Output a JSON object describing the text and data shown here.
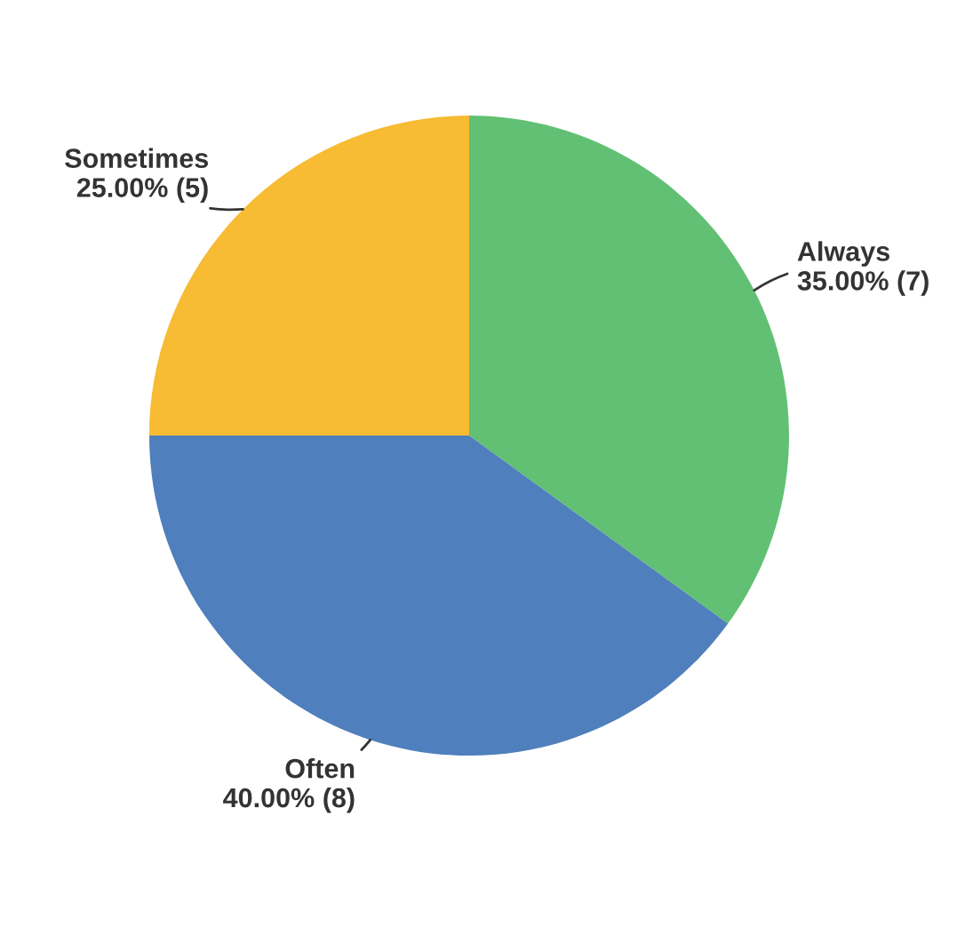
{
  "chart_data": {
    "type": "pie",
    "categories": [
      "Always",
      "Often",
      "Sometimes"
    ],
    "values": [
      35,
      40,
      25
    ],
    "value_labels": [
      "35.00% (7)",
      "40.00% (8)",
      "25.00% (5)"
    ],
    "colors": [
      "#62c074",
      "#4f7fbc",
      "#f7bb34"
    ]
  }
}
